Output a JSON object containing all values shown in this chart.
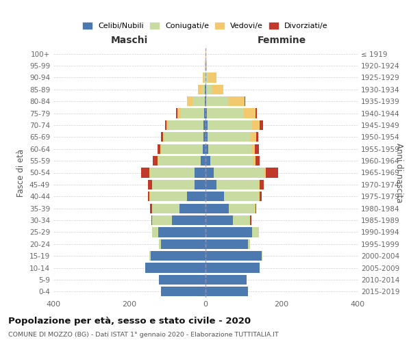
{
  "age_groups": [
    "0-4",
    "5-9",
    "10-14",
    "15-19",
    "20-24",
    "25-29",
    "30-34",
    "35-39",
    "40-44",
    "45-49",
    "50-54",
    "55-59",
    "60-64",
    "65-69",
    "70-74",
    "75-79",
    "80-84",
    "85-89",
    "90-94",
    "95-99",
    "100+"
  ],
  "birth_years": [
    "2015-2019",
    "2010-2014",
    "2005-2009",
    "2000-2004",
    "1995-1999",
    "1990-1994",
    "1985-1989",
    "1980-1984",
    "1975-1979",
    "1970-1974",
    "1965-1969",
    "1960-1964",
    "1955-1959",
    "1950-1954",
    "1945-1949",
    "1940-1944",
    "1935-1939",
    "1930-1934",
    "1925-1929",
    "1920-1924",
    "≤ 1919"
  ],
  "colors": {
    "celibi": "#4c7ab0",
    "coniugati": "#c8dba0",
    "vedovi": "#f2c96e",
    "divorziati": "#c0392b"
  },
  "maschi": {
    "celibi": [
      118,
      122,
      158,
      145,
      118,
      125,
      88,
      68,
      48,
      28,
      28,
      12,
      8,
      6,
      5,
      3,
      2,
      1,
      0,
      0,
      0
    ],
    "coniugati": [
      0,
      0,
      0,
      2,
      5,
      15,
      52,
      72,
      98,
      112,
      118,
      112,
      108,
      102,
      92,
      62,
      32,
      8,
      3,
      0,
      0
    ],
    "vedovi": [
      0,
      0,
      0,
      0,
      0,
      1,
      0,
      1,
      1,
      1,
      2,
      3,
      3,
      4,
      5,
      8,
      15,
      10,
      5,
      1,
      0
    ],
    "divorziati": [
      0,
      0,
      0,
      0,
      0,
      0,
      2,
      5,
      5,
      10,
      22,
      12,
      8,
      5,
      5,
      5,
      0,
      0,
      0,
      0,
      0
    ]
  },
  "femmine": {
    "celibi": [
      112,
      108,
      142,
      148,
      112,
      122,
      72,
      62,
      48,
      28,
      22,
      12,
      8,
      6,
      5,
      3,
      2,
      1,
      0,
      0,
      0
    ],
    "coniugati": [
      0,
      0,
      0,
      2,
      5,
      18,
      45,
      68,
      92,
      112,
      132,
      112,
      112,
      112,
      118,
      98,
      58,
      15,
      8,
      0,
      0
    ],
    "vedovi": [
      0,
      0,
      0,
      0,
      0,
      0,
      0,
      1,
      2,
      3,
      5,
      8,
      10,
      15,
      20,
      30,
      42,
      30,
      20,
      3,
      1
    ],
    "divorziati": [
      0,
      0,
      0,
      0,
      0,
      0,
      3,
      3,
      5,
      10,
      32,
      10,
      10,
      5,
      8,
      5,
      3,
      0,
      0,
      0,
      0
    ]
  },
  "xlim": 400,
  "title": "Popolazione per età, sesso e stato civile - 2020",
  "subtitle": "COMUNE DI MOZZO (BG) - Dati ISTAT 1° gennaio 2020 - Elaborazione TUTTITALIA.IT",
  "xlabel_left": "Maschi",
  "xlabel_right": "Femmine",
  "ylabel_left": "Fasce di età",
  "ylabel_right": "Anni di nascita",
  "bg_color": "#ffffff",
  "grid_color": "#cccccc"
}
